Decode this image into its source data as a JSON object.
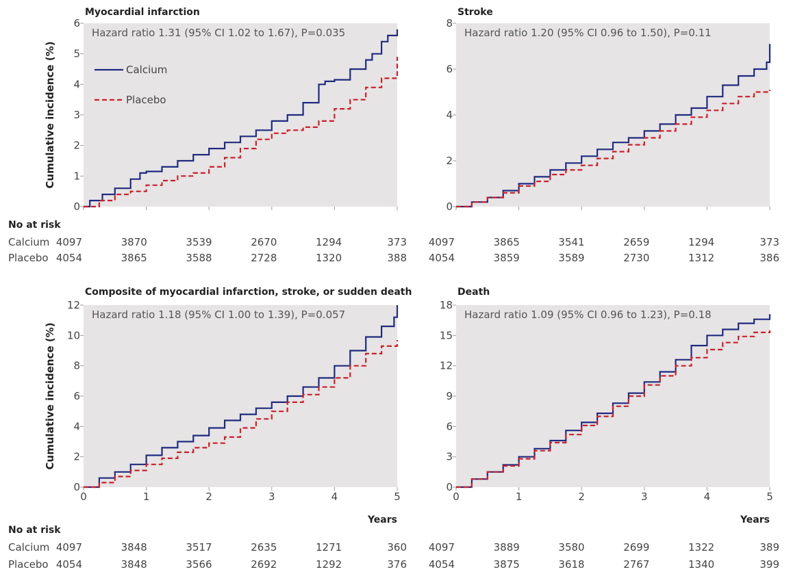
{
  "colors": {
    "calcium": "#1f2a80",
    "placebo": "#cc1f2a",
    "panel_bg": "#e6e4e4",
    "tick": "#999999"
  },
  "risk_header": "No at risk",
  "x_label": "Years",
  "y_label": "Cumulative incidence (%)",
  "legend": {
    "calcium": "Calcium",
    "placebo": "Placebo"
  },
  "chart_data": [
    {
      "type": "line",
      "title": "Myocardial infarction",
      "annotation": "Hazard ratio 1.31 (95% CI 1.02 to 1.67), P=0.035",
      "xlim": [
        0,
        5
      ],
      "ylim": [
        0,
        6
      ],
      "yticks": [
        "0",
        "1",
        "2",
        "3",
        "4",
        "5",
        "6"
      ],
      "xticks": [],
      "show_legend": true,
      "series": [
        {
          "name": "Calcium",
          "x": [
            0,
            0.1,
            0.3,
            0.5,
            0.75,
            0.9,
            1.0,
            1.25,
            1.5,
            1.75,
            2.0,
            2.25,
            2.5,
            2.75,
            3.0,
            3.25,
            3.5,
            3.75,
            3.85,
            4.0,
            4.25,
            4.5,
            4.6,
            4.75,
            4.85,
            5.0
          ],
          "y": [
            0,
            0.2,
            0.4,
            0.6,
            0.9,
            1.1,
            1.15,
            1.3,
            1.5,
            1.7,
            1.9,
            2.1,
            2.3,
            2.5,
            2.8,
            3.0,
            3.4,
            4.0,
            4.1,
            4.15,
            4.5,
            4.8,
            5.0,
            5.4,
            5.6,
            5.8
          ]
        },
        {
          "name": "Placebo",
          "x": [
            0,
            0.25,
            0.5,
            0.75,
            1.0,
            1.25,
            1.5,
            1.75,
            2.0,
            2.25,
            2.5,
            2.75,
            3.0,
            3.25,
            3.5,
            3.75,
            4.0,
            4.25,
            4.5,
            4.75,
            5.0
          ],
          "y": [
            0,
            0.2,
            0.4,
            0.5,
            0.7,
            0.85,
            1.0,
            1.1,
            1.3,
            1.6,
            1.9,
            2.2,
            2.4,
            2.5,
            2.6,
            2.8,
            3.2,
            3.5,
            3.9,
            4.2,
            4.9
          ]
        }
      ],
      "at_risk": {
        "calcium": [
          "4097",
          "3870",
          "3539",
          "2670",
          "1294",
          "373"
        ],
        "placebo": [
          "4054",
          "3865",
          "3588",
          "2728",
          "1320",
          "388"
        ]
      }
    },
    {
      "type": "line",
      "title": "Stroke",
      "annotation": "Hazard ratio 1.20 (95% CI 0.96 to 1.50), P=0.11",
      "xlim": [
        0,
        5
      ],
      "ylim": [
        0,
        8
      ],
      "yticks": [
        "0",
        "2",
        "4",
        "6",
        "8"
      ],
      "xticks": [],
      "show_legend": false,
      "series": [
        {
          "name": "Calcium",
          "x": [
            0,
            0.25,
            0.5,
            0.75,
            1.0,
            1.25,
            1.5,
            1.75,
            2.0,
            2.25,
            2.5,
            2.75,
            3.0,
            3.25,
            3.5,
            3.75,
            4.0,
            4.25,
            4.5,
            4.75,
            4.95,
            5.0
          ],
          "y": [
            0,
            0.2,
            0.4,
            0.7,
            1.0,
            1.3,
            1.6,
            1.9,
            2.2,
            2.5,
            2.8,
            3.0,
            3.3,
            3.6,
            4.0,
            4.3,
            4.8,
            5.3,
            5.7,
            6.0,
            6.3,
            7.1
          ]
        },
        {
          "name": "Placebo",
          "x": [
            0,
            0.25,
            0.5,
            0.75,
            1.0,
            1.25,
            1.5,
            1.75,
            2.0,
            2.25,
            2.5,
            2.75,
            3.0,
            3.25,
            3.5,
            3.75,
            4.0,
            4.25,
            4.5,
            4.75,
            5.0
          ],
          "y": [
            0,
            0.2,
            0.4,
            0.6,
            0.9,
            1.1,
            1.4,
            1.6,
            1.8,
            2.1,
            2.4,
            2.7,
            3.0,
            3.3,
            3.6,
            3.9,
            4.2,
            4.5,
            4.8,
            5.0,
            5.1
          ]
        }
      ],
      "at_risk": {
        "calcium": [
          "4097",
          "3865",
          "3541",
          "2659",
          "1294",
          "373"
        ],
        "placebo": [
          "4054",
          "3859",
          "3589",
          "2730",
          "1312",
          "386"
        ]
      }
    },
    {
      "type": "line",
      "title": "Composite of myocardial infarction, stroke, or sudden death",
      "annotation": "Hazard ratio 1.18 (95% CI 1.00 to 1.39), P=0.057",
      "xlim": [
        0,
        5
      ],
      "ylim": [
        0,
        12
      ],
      "yticks": [
        "0",
        "2",
        "4",
        "6",
        "8",
        "10",
        "12"
      ],
      "xticks": [
        "0",
        "1",
        "2",
        "3",
        "4",
        "5"
      ],
      "show_legend": false,
      "series": [
        {
          "name": "Calcium",
          "x": [
            0,
            0.25,
            0.5,
            0.75,
            1.0,
            1.25,
            1.5,
            1.75,
            2.0,
            2.25,
            2.5,
            2.75,
            3.0,
            3.25,
            3.5,
            3.75,
            4.0,
            4.25,
            4.5,
            4.75,
            4.95,
            5.0
          ],
          "y": [
            0,
            0.6,
            1.0,
            1.5,
            2.1,
            2.6,
            3.0,
            3.4,
            3.9,
            4.4,
            4.8,
            5.2,
            5.6,
            6.0,
            6.6,
            7.2,
            8.0,
            9.0,
            9.9,
            10.6,
            11.2,
            12.0
          ]
        },
        {
          "name": "Placebo",
          "x": [
            0,
            0.25,
            0.5,
            0.75,
            1.0,
            1.25,
            1.5,
            1.75,
            2.0,
            2.25,
            2.5,
            2.75,
            3.0,
            3.25,
            3.5,
            3.75,
            4.0,
            4.25,
            4.5,
            4.75,
            5.0
          ],
          "y": [
            0,
            0.3,
            0.7,
            1.1,
            1.5,
            1.9,
            2.3,
            2.6,
            2.9,
            3.3,
            3.9,
            4.5,
            5.0,
            5.6,
            6.1,
            6.6,
            7.2,
            8.0,
            8.8,
            9.3,
            9.7
          ]
        }
      ],
      "at_risk": {
        "calcium": [
          "4097",
          "3848",
          "3517",
          "2635",
          "1271",
          "360"
        ],
        "placebo": [
          "4054",
          "3848",
          "3566",
          "2692",
          "1292",
          "376"
        ]
      }
    },
    {
      "type": "line",
      "title": "Death",
      "annotation": "Hazard ratio 1.09 (95% CI 0.96 to 1.23), P=0.18",
      "xlim": [
        0,
        5
      ],
      "ylim": [
        0,
        18
      ],
      "yticks": [
        "0",
        "3",
        "6",
        "9",
        "12",
        "15",
        "18"
      ],
      "xticks": [
        "0",
        "1",
        "2",
        "3",
        "4",
        "5"
      ],
      "show_legend": false,
      "series": [
        {
          "name": "Calcium",
          "x": [
            0,
            0.25,
            0.5,
            0.75,
            1.0,
            1.25,
            1.5,
            1.75,
            2.0,
            2.25,
            2.5,
            2.75,
            3.0,
            3.25,
            3.5,
            3.75,
            4.0,
            4.25,
            4.5,
            4.75,
            5.0
          ],
          "y": [
            0,
            0.8,
            1.5,
            2.2,
            3.0,
            3.8,
            4.6,
            5.6,
            6.4,
            7.3,
            8.3,
            9.3,
            10.4,
            11.4,
            12.6,
            14.0,
            15.0,
            15.6,
            16.2,
            16.6,
            17.1
          ]
        },
        {
          "name": "Placebo",
          "x": [
            0,
            0.25,
            0.5,
            0.75,
            1.0,
            1.25,
            1.5,
            1.75,
            2.0,
            2.25,
            2.5,
            2.75,
            3.0,
            3.25,
            3.5,
            3.75,
            4.0,
            4.25,
            4.5,
            4.75,
            5.0
          ],
          "y": [
            0,
            0.8,
            1.5,
            2.1,
            2.8,
            3.6,
            4.4,
            5.2,
            6.1,
            7.0,
            8.0,
            9.0,
            10.1,
            11.0,
            12.0,
            12.8,
            13.6,
            14.3,
            14.9,
            15.3,
            15.5
          ]
        }
      ],
      "at_risk": {
        "calcium": [
          "4097",
          "3889",
          "3580",
          "2699",
          "1322",
          "389"
        ],
        "placebo": [
          "4054",
          "3875",
          "3618",
          "2767",
          "1340",
          "399"
        ]
      }
    }
  ]
}
